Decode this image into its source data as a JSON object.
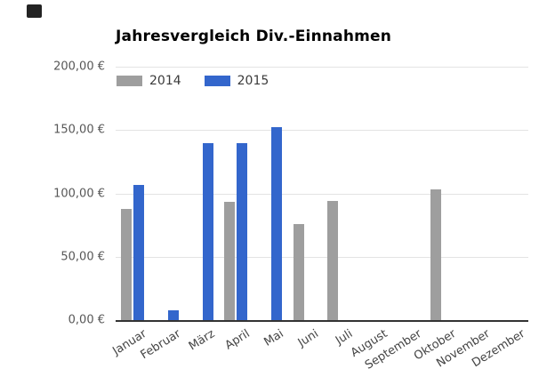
{
  "page": {
    "corner_marker_color": "#232323",
    "axis_line_color": "#333333",
    "gridline_color": "#e3e3e3"
  },
  "chart_data": {
    "type": "bar",
    "title": "Jahresvergleich Div.-Einnahmen",
    "categories": [
      "Januar",
      "Februar",
      "März",
      "April",
      "Mai",
      "Juni",
      "Juli",
      "August",
      "September",
      "Oktober",
      "November",
      "Dezember"
    ],
    "series": [
      {
        "name": "2014",
        "color": "#9e9e9e",
        "values": [
          88,
          0,
          0,
          93,
          0,
          76,
          94,
          0,
          0,
          103,
          0,
          0
        ]
      },
      {
        "name": "2015",
        "color": "#3366cc",
        "values": [
          107,
          8,
          140,
          140,
          152,
          0,
          0,
          0,
          0,
          0,
          0,
          0
        ]
      }
    ],
    "y_ticks_top_down": [
      "200,00 €",
      "150,00 €",
      "100,00 €",
      "50,00 €",
      "0,00 €"
    ],
    "ylim": [
      0,
      200
    ],
    "value_unit": "€",
    "grid": true,
    "legend_position": "top-left-inside",
    "xlabel": "",
    "ylabel": ""
  }
}
